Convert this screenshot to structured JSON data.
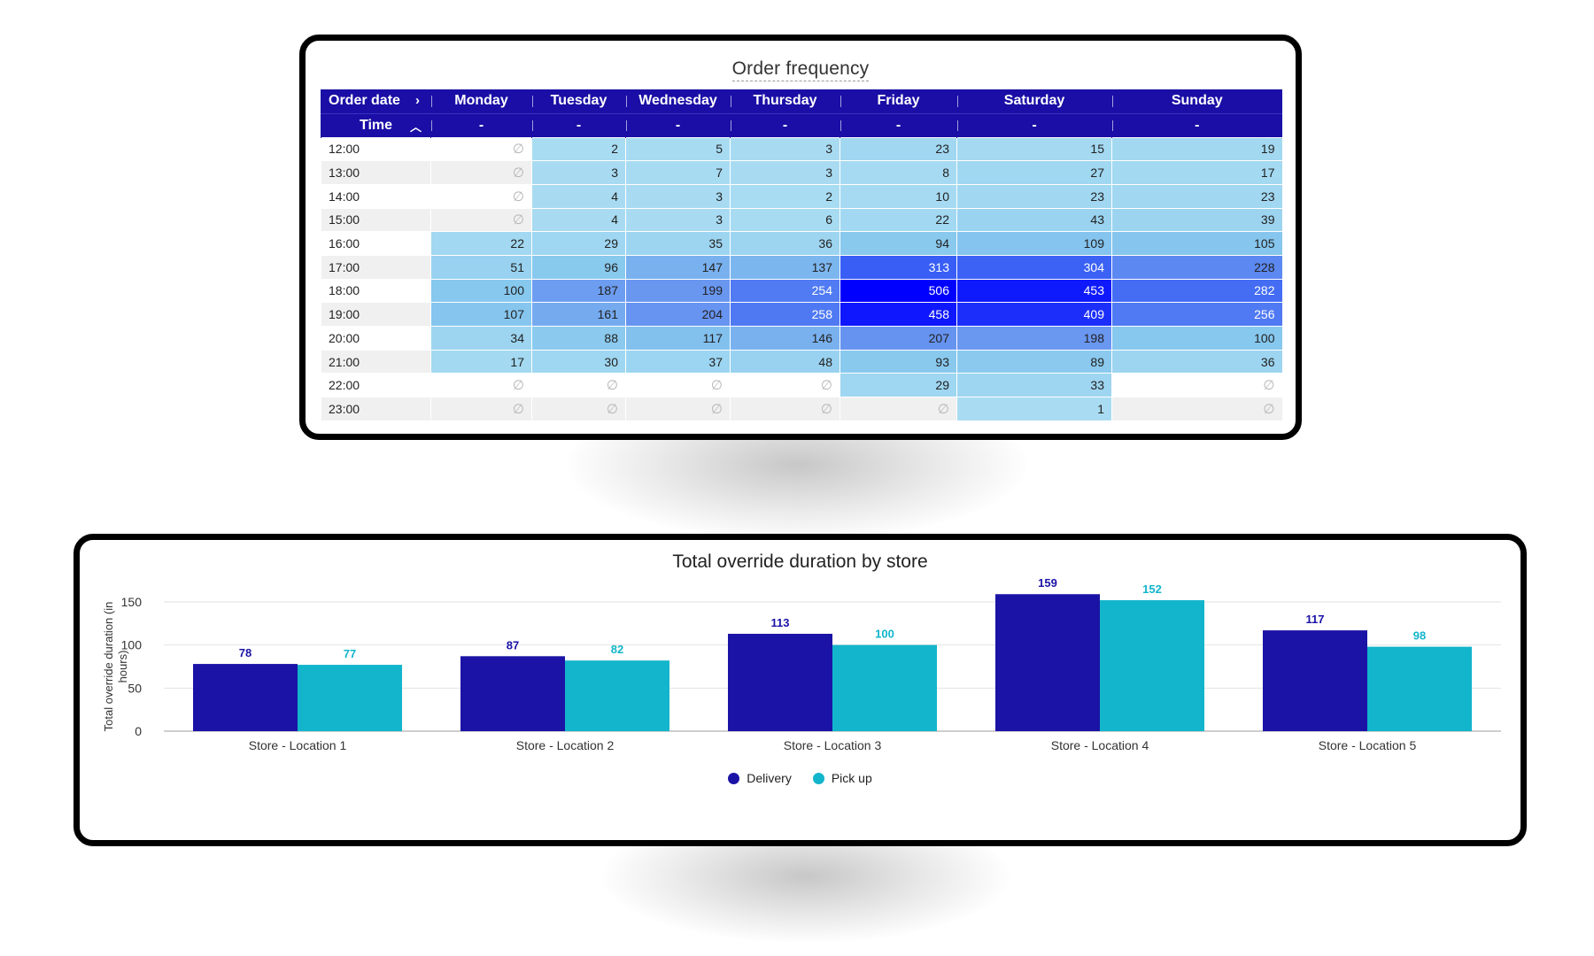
{
  "heatmap": {
    "title": "Order frequency",
    "header_row1_label": "Order date",
    "header_row2_label": "Time",
    "row1_icon": "chevron-right-icon",
    "row2_icon": "chevron-up-icon",
    "days": [
      "Monday",
      "Tuesday",
      "Wednesday",
      "Thursday",
      "Friday",
      "Saturday",
      "Sunday"
    ],
    "subheader": "-",
    "null_symbol": "∅",
    "times": [
      "12:00",
      "13:00",
      "14:00",
      "15:00",
      "16:00",
      "17:00",
      "18:00",
      "19:00",
      "20:00",
      "21:00",
      "22:00",
      "23:00"
    ],
    "values": [
      [
        null,
        2,
        5,
        3,
        23,
        15,
        19
      ],
      [
        null,
        3,
        7,
        3,
        8,
        27,
        17
      ],
      [
        null,
        4,
        3,
        2,
        10,
        23,
        23
      ],
      [
        null,
        4,
        3,
        6,
        22,
        43,
        39
      ],
      [
        22,
        29,
        35,
        36,
        94,
        109,
        105
      ],
      [
        51,
        96,
        147,
        137,
        313,
        304,
        228
      ],
      [
        100,
        187,
        199,
        254,
        506,
        453,
        282
      ],
      [
        107,
        161,
        204,
        258,
        458,
        409,
        256
      ],
      [
        34,
        88,
        117,
        146,
        207,
        198,
        100
      ],
      [
        17,
        30,
        37,
        48,
        93,
        89,
        36
      ],
      [
        null,
        null,
        null,
        null,
        29,
        33,
        null
      ],
      [
        null,
        null,
        null,
        null,
        null,
        1,
        null
      ]
    ],
    "colors": {
      "header": "#1a0ea6",
      "low": "#a9dcf2",
      "high": "#0000ff"
    }
  },
  "barchart": {
    "title": "Total override duration by store",
    "ylabel": "Total override duration (in hours)",
    "legend": [
      "Delivery",
      "Pick up"
    ],
    "colors": {
      "Delivery": "#1b13a6",
      "Pick up": "#12b5cb"
    }
  },
  "chart_data": {
    "type": "bar",
    "title": "Total override duration by store",
    "xlabel": "",
    "ylabel": "Total override duration (in hours)",
    "categories": [
      "Store - Location 1",
      "Store - Location 2",
      "Store - Location 3",
      "Store - Location 4",
      "Store - Location 5"
    ],
    "series": [
      {
        "name": "Delivery",
        "values": [
          78,
          87,
          113,
          159,
          117
        ]
      },
      {
        "name": "Pick up",
        "values": [
          77,
          82,
          100,
          152,
          98
        ]
      }
    ],
    "ylim": [
      0,
      150
    ],
    "yticks": [
      0,
      50,
      100,
      150
    ],
    "grid": true,
    "legend_position": "bottom"
  }
}
